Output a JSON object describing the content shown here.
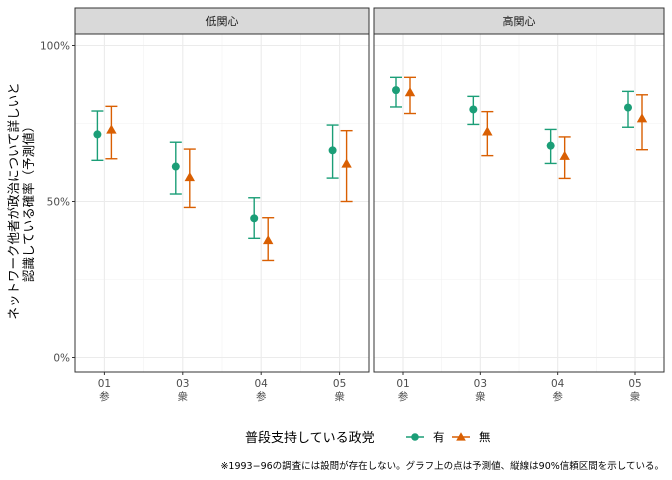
{
  "chart_data": {
    "type": "scatter",
    "subtype": "point-range (estimate with 90% interval), faceted",
    "ylabel_lines": [
      "ネットワーク他者が政治について詳しいと",
      "認識している確率（予測値）"
    ],
    "xlabel": "",
    "ylim": [
      0,
      1.0
    ],
    "ytick_labels": [
      "0%",
      "50%",
      "100%"
    ],
    "ytick_values": [
      0,
      0.5,
      1.0
    ],
    "xticks": [
      {
        "year": "01",
        "type": "参"
      },
      {
        "year": "03",
        "type": "衆"
      },
      {
        "year": "04",
        "type": "参"
      },
      {
        "year": "05",
        "type": "衆"
      }
    ],
    "grid": true,
    "facets": [
      {
        "label": "低関心",
        "series": [
          {
            "name": "有",
            "color": "#1B9E77",
            "marker": "circle",
            "y": [
              0.715,
              0.612,
              0.446,
              0.664
            ],
            "lo": [
              0.632,
              0.524,
              0.382,
              0.575
            ],
            "hi": [
              0.79,
              0.69,
              0.512,
              0.745
            ]
          },
          {
            "name": "無",
            "color": "#D95F02",
            "marker": "triangle",
            "y": [
              0.73,
              0.578,
              0.376,
              0.621
            ],
            "lo": [
              0.637,
              0.481,
              0.311,
              0.5
            ],
            "hi": [
              0.805,
              0.668,
              0.448,
              0.727
            ]
          }
        ]
      },
      {
        "label": "高関心",
        "series": [
          {
            "name": "有",
            "color": "#1B9E77",
            "marker": "circle",
            "y": [
              0.857,
              0.795,
              0.679,
              0.801
            ],
            "lo": [
              0.803,
              0.747,
              0.622,
              0.738
            ],
            "hi": [
              0.898,
              0.837,
              0.731,
              0.853
            ]
          },
          {
            "name": "無",
            "color": "#D95F02",
            "marker": "triangle",
            "y": [
              0.85,
              0.724,
              0.646,
              0.766
            ],
            "lo": [
              0.782,
              0.647,
              0.574,
              0.666
            ],
            "hi": [
              0.898,
              0.788,
              0.707,
              0.842
            ]
          }
        ]
      }
    ],
    "legend": {
      "title": "普段支持している政党",
      "position": "bottom"
    },
    "caption": "※1993−96の調査には設問が存在しない。グラフ上の点は予測値、縦線は90%信頼区間を示している。"
  }
}
